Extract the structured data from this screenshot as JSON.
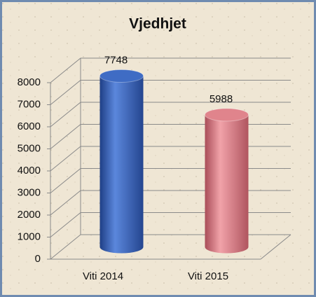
{
  "chart_data": {
    "type": "bar",
    "title": "Vjedhjet",
    "categories": [
      "Viti 2014",
      "Viti 2015"
    ],
    "values": [
      7748,
      5988
    ],
    "colors": [
      "#3f6cc4",
      "#e0848c"
    ],
    "ylim": [
      0,
      8000
    ],
    "yticks": [
      0,
      1000,
      2000,
      3000,
      4000,
      5000,
      6000,
      7000,
      8000
    ],
    "grid": true
  }
}
